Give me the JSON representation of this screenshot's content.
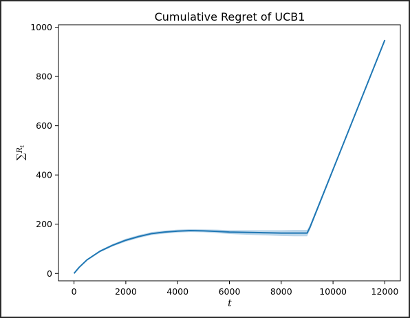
{
  "chart_data": {
    "type": "line",
    "title": "Cumulative Regret of UCB1",
    "xlabel": "t",
    "ylabel_main": "∑",
    "ylabel_sub": "R",
    "ylabel_subscript": "t",
    "xlim": [
      -600,
      12600
    ],
    "ylim": [
      -30,
      1010
    ],
    "x_ticks": [
      0,
      2000,
      4000,
      6000,
      8000,
      10000,
      12000
    ],
    "y_ticks": [
      0,
      200,
      400,
      600,
      800,
      1000
    ],
    "grid": false,
    "series": [
      {
        "color": "#1f77b4",
        "band_color": "#a6c8e3",
        "x": [
          0,
          200,
          500,
          1000,
          1500,
          2000,
          2500,
          3000,
          3500,
          4000,
          4500,
          5000,
          5500,
          6000,
          6500,
          7000,
          7500,
          8000,
          8500,
          9000,
          9100,
          12000
        ],
        "y": [
          0,
          25,
          55,
          90,
          115,
          135,
          150,
          162,
          168,
          172,
          174,
          173,
          171,
          168,
          167,
          166,
          165,
          164,
          164,
          164,
          185,
          948
        ],
        "lower": [
          0,
          23,
          52,
          86,
          110,
          129,
          144,
          156,
          162,
          166,
          168,
          167,
          164,
          160,
          158,
          156,
          154,
          152,
          151,
          151,
          175,
          948
        ],
        "upper": [
          0,
          27,
          58,
          94,
          120,
          141,
          156,
          168,
          174,
          178,
          180,
          179,
          178,
          176,
          176,
          176,
          176,
          176,
          177,
          177,
          195,
          948
        ]
      }
    ]
  }
}
